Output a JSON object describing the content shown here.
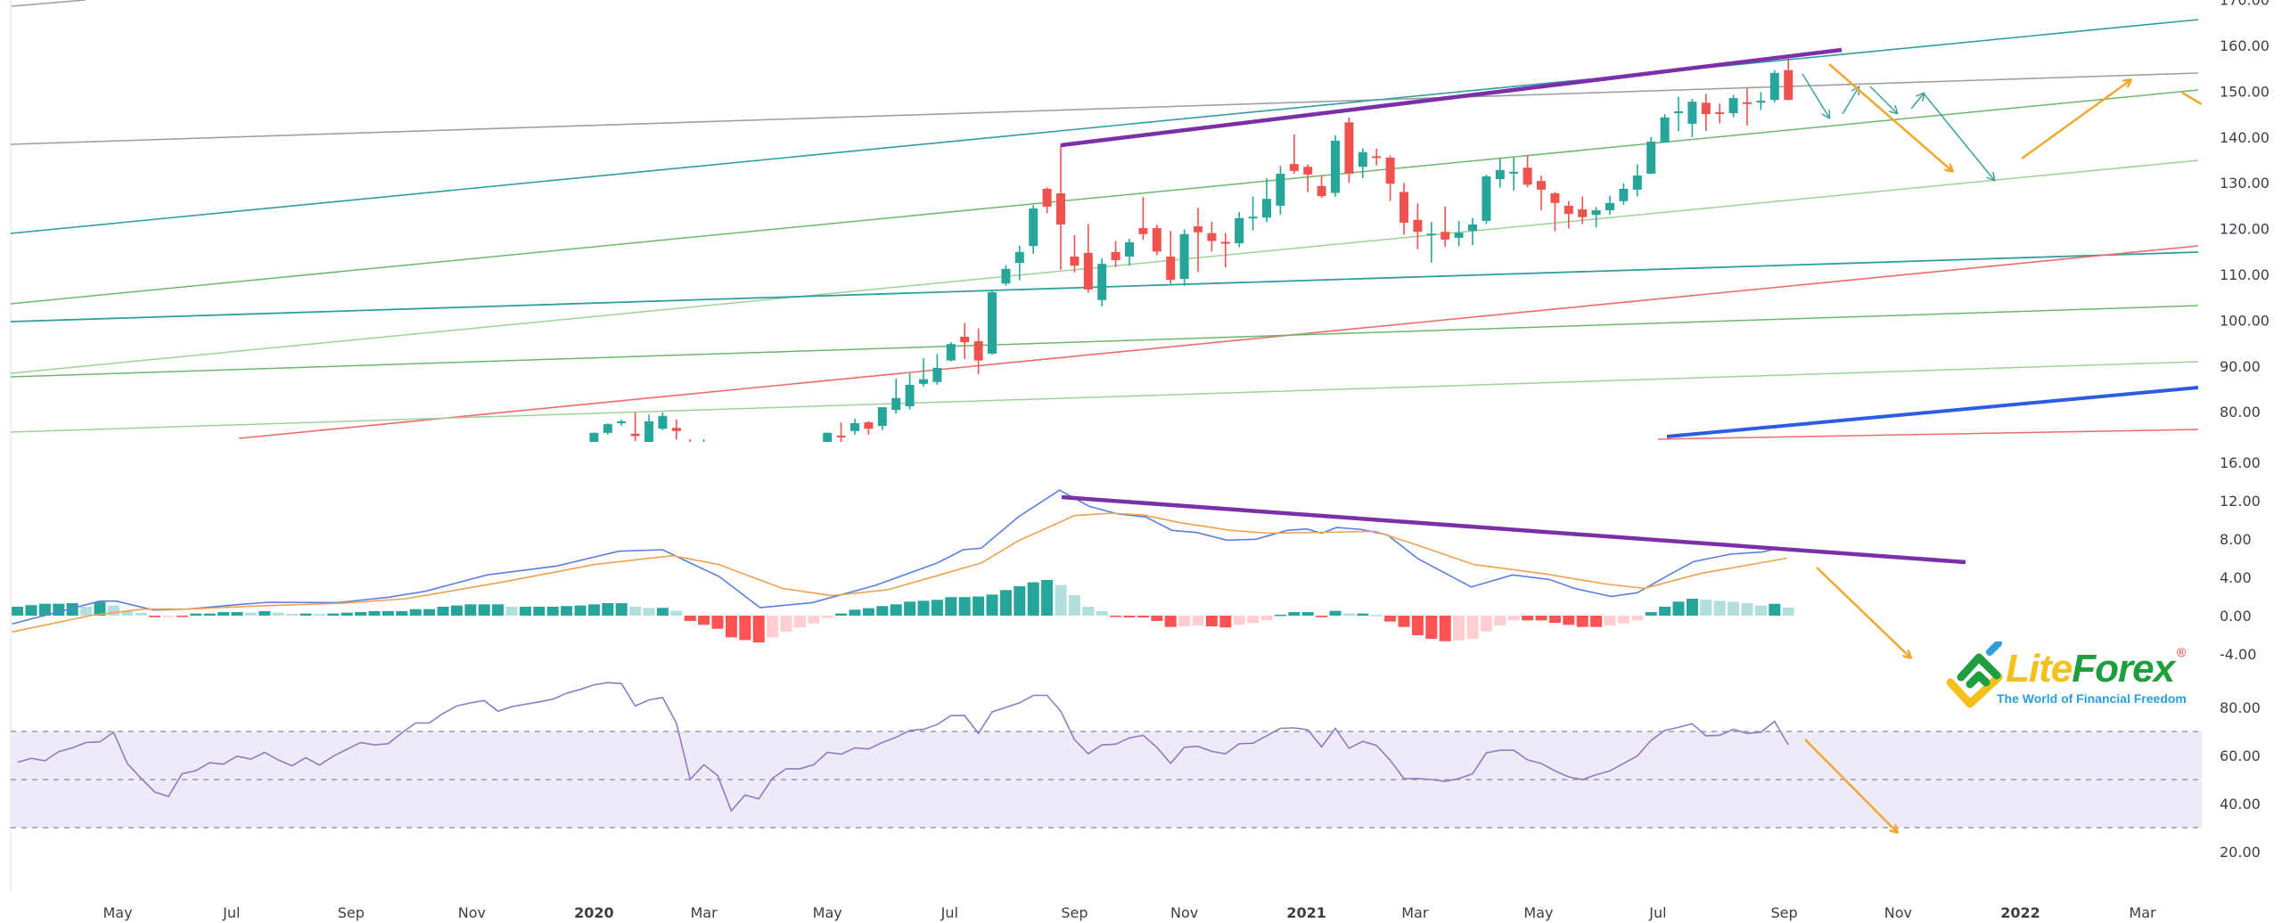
{
  "colors": {
    "up": "#26a69a",
    "down": "#ef5350",
    "hist_up_strong": "#26a69a",
    "hist_up_weak": "#b2dfdb",
    "hist_down_strong": "#ff5252",
    "hist_down_weak": "#ffcdd2",
    "macd_line": "#5b7fe0",
    "signal_line": "#f0a050",
    "rsi_line": "#8e7cc3",
    "rsi_band": "#ede7f6",
    "annotation_purple": "#7b2fa8",
    "arrow_orange": "#f2a72d",
    "arrow_teal": "#3aa39a"
  },
  "logo": {
    "word_lite": "Lite",
    "word_forex": "Forex",
    "registered": "®",
    "tagline": "The World of Financial Freedom"
  },
  "chart_data": [
    {
      "type": "candlestick",
      "name": "price",
      "x_unit": "week index (0 = last week of Dec 2019)",
      "ylim": [
        72.5,
        170
      ],
      "yticks": [
        "170.00",
        "160.00",
        "150.00",
        "140.00",
        "130.00",
        "120.00",
        "110.00",
        "100.00",
        "90.00",
        "80.00"
      ],
      "ytick_values": [
        170,
        160,
        150,
        140,
        130,
        120,
        110,
        100,
        90,
        80
      ],
      "candles_week_o_h_l_c": [
        [
          0,
          72,
          72.3,
          71.8,
          72.1
        ],
        [
          1,
          71.5,
          75.5,
          71.5,
          75.4
        ],
        [
          2,
          75.4,
          77.5,
          75,
          77.3
        ],
        [
          3,
          77.5,
          78.3,
          77,
          77.9
        ],
        [
          4,
          75.2,
          79.9,
          73.6,
          74.7
        ],
        [
          5,
          73.4,
          79.4,
          73,
          77.9
        ],
        [
          6,
          76.3,
          79.9,
          76,
          79.1
        ],
        [
          7,
          76.5,
          78.3,
          73.9,
          75.8
        ],
        [
          8,
          72.5,
          74,
          71.5,
          72
        ],
        [
          9,
          72,
          74,
          71.5,
          72.4
        ],
        [
          17,
          71.5,
          72.5,
          71,
          72
        ],
        [
          18,
          71.5,
          75.5,
          71.5,
          75.4
        ],
        [
          19,
          74.8,
          77.7,
          72.4,
          74.5
        ],
        [
          20,
          75.8,
          78.5,
          75,
          77.5
        ],
        [
          21,
          77.7,
          78,
          75,
          76.3
        ],
        [
          22,
          76.9,
          81,
          76,
          81
        ],
        [
          23,
          80.4,
          87.2,
          79.6,
          83
        ],
        [
          24,
          81.2,
          88.4,
          80.5,
          85.9
        ],
        [
          25,
          86.1,
          91.7,
          85.5,
          87.1
        ],
        [
          26,
          86.5,
          92.6,
          85.9,
          89.6
        ],
        [
          27,
          91.2,
          95.2,
          91,
          94.8
        ],
        [
          28,
          96.4,
          99.4,
          91.5,
          95.2
        ],
        [
          29,
          95.4,
          98.2,
          88.2,
          91.2
        ],
        [
          30,
          92.7,
          106.3,
          92.5,
          106.1
        ],
        [
          31,
          108,
          112,
          107.5,
          111.2
        ],
        [
          32,
          112.5,
          116.3,
          108.7,
          114.9
        ],
        [
          33,
          116.2,
          125.1,
          114.5,
          124.4
        ],
        [
          34,
          128.7,
          129,
          123.4,
          124.8
        ],
        [
          35,
          127.7,
          138.4,
          111,
          120.9
        ],
        [
          36,
          113.9,
          118.6,
          110.4,
          111.9
        ],
        [
          37,
          114.7,
          121,
          106,
          106.7
        ],
        [
          38,
          104.4,
          113.5,
          103,
          112.3
        ],
        [
          39,
          114.9,
          117.3,
          111.6,
          113.1
        ],
        [
          40,
          113.9,
          117.8,
          111.9,
          117
        ],
        [
          41,
          120.1,
          126.9,
          117.6,
          118.8
        ],
        [
          42,
          120.1,
          120.8,
          114.2,
          115
        ],
        [
          43,
          113.9,
          119.5,
          108,
          108.8
        ],
        [
          44,
          109,
          119.8,
          107.5,
          118.8
        ],
        [
          45,
          120.5,
          124.5,
          110.5,
          119.2
        ],
        [
          46,
          119,
          121.5,
          115,
          117.3
        ],
        [
          47,
          117.1,
          119,
          111.5,
          117
        ],
        [
          48,
          116.8,
          123.6,
          116,
          122.3
        ],
        [
          49,
          122.4,
          127,
          119.6,
          122.6
        ],
        [
          50,
          122.4,
          131,
          121.4,
          126.5
        ],
        [
          51,
          125,
          133.7,
          123,
          132
        ],
        [
          52,
          134.1,
          140.6,
          132,
          132.6
        ],
        [
          53,
          133.5,
          134,
          128,
          131.8
        ],
        [
          54,
          129.3,
          131.5,
          126.7,
          127.1
        ],
        [
          55,
          127.8,
          140.4,
          127,
          139.2
        ],
        [
          56,
          143.2,
          144.3,
          130,
          132
        ],
        [
          57,
          133.5,
          137.5,
          131,
          136.7
        ],
        [
          58,
          135.8,
          137.5,
          133.8,
          135.5
        ],
        [
          59,
          135.5,
          136,
          126,
          129.8
        ],
        [
          60,
          128,
          130,
          118.7,
          121.3
        ],
        [
          61,
          121.9,
          125.5,
          115.5,
          119.3
        ],
        [
          62,
          118.8,
          121.4,
          112.6,
          118.9
        ],
        [
          63,
          119.3,
          124.8,
          116,
          117.6
        ],
        [
          64,
          118,
          121.7,
          116.2,
          119.1
        ],
        [
          65,
          119.5,
          122.3,
          116.4,
          120.9
        ],
        [
          66,
          121.7,
          131.8,
          121,
          131.4
        ],
        [
          67,
          130.8,
          135.5,
          129,
          132.8
        ],
        [
          68,
          132.2,
          135.5,
          128.3,
          132.4
        ],
        [
          69,
          133.3,
          136,
          129,
          129.6
        ],
        [
          70,
          130.4,
          131.6,
          124,
          128.5
        ],
        [
          71,
          127.7,
          128,
          119.4,
          125.6
        ],
        [
          72,
          125,
          126,
          120,
          123.2
        ],
        [
          73,
          124.2,
          127,
          121,
          122.5
        ],
        [
          74,
          123,
          124.7,
          120.3,
          124
        ],
        [
          75,
          124,
          127.2,
          123,
          125.6
        ],
        [
          76,
          126,
          129.9,
          125.2,
          128.7
        ],
        [
          77,
          128.5,
          134,
          127,
          131.6
        ],
        [
          78,
          132,
          140,
          131.9,
          139
        ],
        [
          79,
          138.8,
          145,
          138.8,
          144.3
        ],
        [
          80,
          145.3,
          148.8,
          141.3,
          145.6
        ],
        [
          81,
          142.9,
          148.3,
          140,
          147.7
        ],
        [
          82,
          147.5,
          149.4,
          141.3,
          145
        ],
        [
          83,
          145.4,
          147.3,
          143,
          145.3
        ],
        [
          84,
          145.2,
          149.2,
          144.3,
          148.5
        ],
        [
          85,
          147.6,
          150.8,
          142.5,
          147.5
        ],
        [
          86,
          147.7,
          149.8,
          145.9,
          147.9
        ],
        [
          87,
          148.1,
          154.6,
          147.6,
          154
        ],
        [
          88,
          154.6,
          157.3,
          148,
          148.1
        ]
      ]
    },
    {
      "type": "line+bar",
      "name": "MACD",
      "ylim": [
        -6,
        17
      ],
      "yticks": [
        "16.00",
        "12.00",
        "8.00",
        "4.00",
        "0.00",
        "-4.00"
      ],
      "ytick_values": [
        16,
        12,
        8,
        4,
        0,
        -4
      ],
      "histogram_start_week": -41,
      "histogram": [
        0.93,
        1.1,
        1.24,
        1.24,
        1.3,
        0.93,
        1.43,
        1.06,
        0.43,
        0.28,
        -0.16,
        -0.1,
        -0.1,
        0.22,
        0.22,
        0.37,
        0.37,
        0.31,
        0.47,
        0.31,
        0.19,
        0.22,
        0.16,
        0.22,
        0.31,
        0.37,
        0.47,
        0.47,
        0.47,
        0.68,
        0.68,
        0.93,
        1.06,
        1.18,
        1.18,
        1.18,
        0.93,
        0.93,
        0.93,
        0.93,
        1.0,
        1.06,
        1.18,
        1.3,
        1.3,
        0.93,
        0.81,
        0.81,
        0.5,
        -0.56,
        -0.96,
        -1.37,
        -2.27,
        -2.55,
        -2.8,
        -2.27,
        -1.68,
        -1.24,
        -0.81,
        -0.25,
        0.22,
        0.62,
        0.78,
        1.0,
        1.18,
        1.46,
        1.55,
        1.65,
        1.93,
        1.93,
        2.0,
        2.2,
        2.67,
        3.07,
        3.48,
        3.73,
        3.2,
        2.14,
        0.93,
        0.47,
        -0.1,
        -0.19,
        -0.19,
        -0.56,
        -1.18,
        -1.12,
        -1.03,
        -1.12,
        -1.24,
        -0.96,
        -0.78,
        -0.5,
        0.1,
        0.37,
        0.37,
        -0.16,
        0.5,
        0.22,
        0.22,
        0.06,
        -0.62,
        -1.18,
        -2.05,
        -2.42,
        -2.67,
        -2.58,
        -2.42,
        -1.65,
        -1.03,
        -0.5,
        -0.5,
        -0.5,
        -0.75,
        -0.96,
        -1.18,
        -1.18,
        -1.03,
        -0.81,
        -0.5,
        0.37,
        0.93,
        1.46,
        1.77,
        1.68,
        1.55,
        1.46,
        1.3,
        1.06,
        1.24,
        0.84
      ],
      "macd_week_value": [
        [
          -41.4,
          -0.87
        ],
        [
          -35,
          1.52
        ],
        [
          -33.8,
          1.52
        ],
        [
          -31.1,
          0.59
        ],
        [
          -28.6,
          0.68
        ],
        [
          -24.9,
          1.15
        ],
        [
          -22.7,
          1.4
        ],
        [
          -17.7,
          1.36
        ],
        [
          -14,
          1.92
        ],
        [
          -11.3,
          2.54
        ],
        [
          -6.8,
          4.25
        ],
        [
          -1.7,
          5.18
        ],
        [
          2.8,
          6.73
        ],
        [
          6,
          6.88
        ],
        [
          7.8,
          5.64
        ],
        [
          10.1,
          4.1
        ],
        [
          13.1,
          0.84
        ],
        [
          16.9,
          1.36
        ],
        [
          21.5,
          3.16
        ],
        [
          26,
          5.5
        ],
        [
          27.9,
          6.88
        ],
        [
          29.2,
          7.04
        ],
        [
          31.9,
          10.3
        ],
        [
          34.9,
          13.1
        ],
        [
          37.1,
          11.4
        ],
        [
          39.2,
          10.6
        ],
        [
          41.2,
          10.3
        ],
        [
          43.1,
          8.9
        ],
        [
          44.9,
          8.68
        ],
        [
          47.1,
          7.88
        ],
        [
          49.2,
          7.97
        ],
        [
          51.5,
          8.9
        ],
        [
          52.9,
          9.05
        ],
        [
          54,
          8.6
        ],
        [
          55.1,
          9.2
        ],
        [
          56.9,
          9.0
        ],
        [
          58.8,
          8.43
        ],
        [
          61,
          5.95
        ],
        [
          64.9,
          3.0
        ],
        [
          67.9,
          4.25
        ],
        [
          70.6,
          3.78
        ],
        [
          72.4,
          2.85
        ],
        [
          75.1,
          2.0
        ],
        [
          77,
          2.39
        ],
        [
          79.3,
          4.25
        ],
        [
          81.1,
          5.64
        ],
        [
          83.8,
          6.42
        ],
        [
          86.1,
          6.64
        ],
        [
          87,
          6.95
        ]
      ],
      "signal_week_value": [
        [
          -41.4,
          -1.7
        ],
        [
          -35.5,
          0.06
        ],
        [
          -31.8,
          0.68
        ],
        [
          -28.6,
          0.68
        ],
        [
          -24,
          0.99
        ],
        [
          -17.2,
          1.3
        ],
        [
          -12.7,
          1.77
        ],
        [
          -5.8,
          3.47
        ],
        [
          1,
          5.33
        ],
        [
          6.7,
          6.26
        ],
        [
          10.1,
          5.33
        ],
        [
          14.7,
          2.85
        ],
        [
          18.3,
          2.08
        ],
        [
          22.4,
          2.7
        ],
        [
          29.2,
          5.5
        ],
        [
          31.9,
          7.8
        ],
        [
          36,
          10.45
        ],
        [
          38.7,
          10.7
        ],
        [
          41,
          10.5
        ],
        [
          43.7,
          9.7
        ],
        [
          47.4,
          8.9
        ],
        [
          50.1,
          8.6
        ],
        [
          54.2,
          8.7
        ],
        [
          57.9,
          8.8
        ],
        [
          61,
          7.35
        ],
        [
          65.1,
          5.33
        ],
        [
          70.1,
          4.4
        ],
        [
          74.7,
          3.3
        ],
        [
          77.5,
          2.85
        ],
        [
          81.6,
          4.4
        ],
        [
          87.9,
          6.0
        ]
      ]
    },
    {
      "type": "line",
      "name": "RSI",
      "ylim": [
        12,
        98
      ],
      "yticks": [
        "80.00",
        "60.00",
        "40.00",
        "20.00"
      ],
      "ytick_values": [
        80,
        60,
        40,
        20
      ],
      "bands": [
        70,
        50,
        30
      ],
      "start_week": -41,
      "values": [
        57.2,
        58.8,
        57.8,
        61.6,
        63.2,
        65.4,
        65.7,
        69.7,
        56.7,
        50.5,
        44.8,
        43,
        52.5,
        53.7,
        57,
        56.4,
        59.7,
        58.5,
        61.3,
        58.2,
        55.7,
        59.1,
        56,
        59.7,
        62.6,
        65.4,
        64.4,
        64.9,
        69.4,
        73.5,
        73.5,
        77.5,
        80.6,
        81.9,
        82.9,
        78.4,
        80.3,
        81.3,
        82.3,
        83.4,
        85.9,
        87.5,
        89.4,
        90.3,
        89.9,
        80.6,
        83.1,
        84.1,
        73.4,
        50,
        56.2,
        51.7,
        37,
        43.6,
        42,
        50.5,
        54.5,
        54.5,
        56.2,
        61.3,
        60.5,
        63.2,
        62.7,
        65.4,
        67.6,
        70.4,
        70.9,
        72.9,
        76.6,
        76.6,
        69.2,
        78.1,
        80,
        81.9,
        85,
        85,
        78.4,
        66.6,
        60.7,
        64.4,
        64.7,
        67.3,
        68.4,
        63.4,
        56.7,
        63.4,
        63.8,
        61.7,
        60.7,
        64.9,
        65.1,
        68.2,
        71.3,
        71.5,
        70.7,
        63.6,
        71.3,
        63,
        65.9,
        64.2,
        58,
        50.4,
        50.4,
        50,
        49.3,
        50.4,
        52.4,
        61.1,
        62.2,
        62.2,
        58.2,
        56.7,
        53.6,
        51.1,
        50,
        52,
        53.6,
        56.7,
        59.8,
        66.3,
        70.4,
        71.7,
        73.2,
        68.2,
        68.4,
        70.9,
        69.2,
        69.7,
        74.2,
        64.4
      ]
    }
  ],
  "time_axis": [
    {
      "label": "May",
      "week": -33.7
    },
    {
      "label": "Jul",
      "week": -25.4
    },
    {
      "label": "Sep",
      "week": -16.7
    },
    {
      "label": "Nov",
      "week": -7.9
    },
    {
      "label": "2020",
      "week": 1,
      "year": true
    },
    {
      "label": "Mar",
      "week": 9
    },
    {
      "label": "May",
      "week": 18
    },
    {
      "label": "Jul",
      "week": 26.9
    },
    {
      "label": "Sep",
      "week": 36
    },
    {
      "label": "Nov",
      "week": 44
    },
    {
      "label": "2021",
      "week": 52.9,
      "year": true
    },
    {
      "label": "Mar",
      "week": 60.8
    },
    {
      "label": "May",
      "week": 69.8
    },
    {
      "label": "Jul",
      "week": 78.5
    },
    {
      "label": "Sep",
      "week": 87.7
    },
    {
      "label": "Nov",
      "week": 96
    },
    {
      "label": "2022",
      "week": 104.9,
      "year": true
    },
    {
      "label": "Mar",
      "week": 113.8
    }
  ]
}
